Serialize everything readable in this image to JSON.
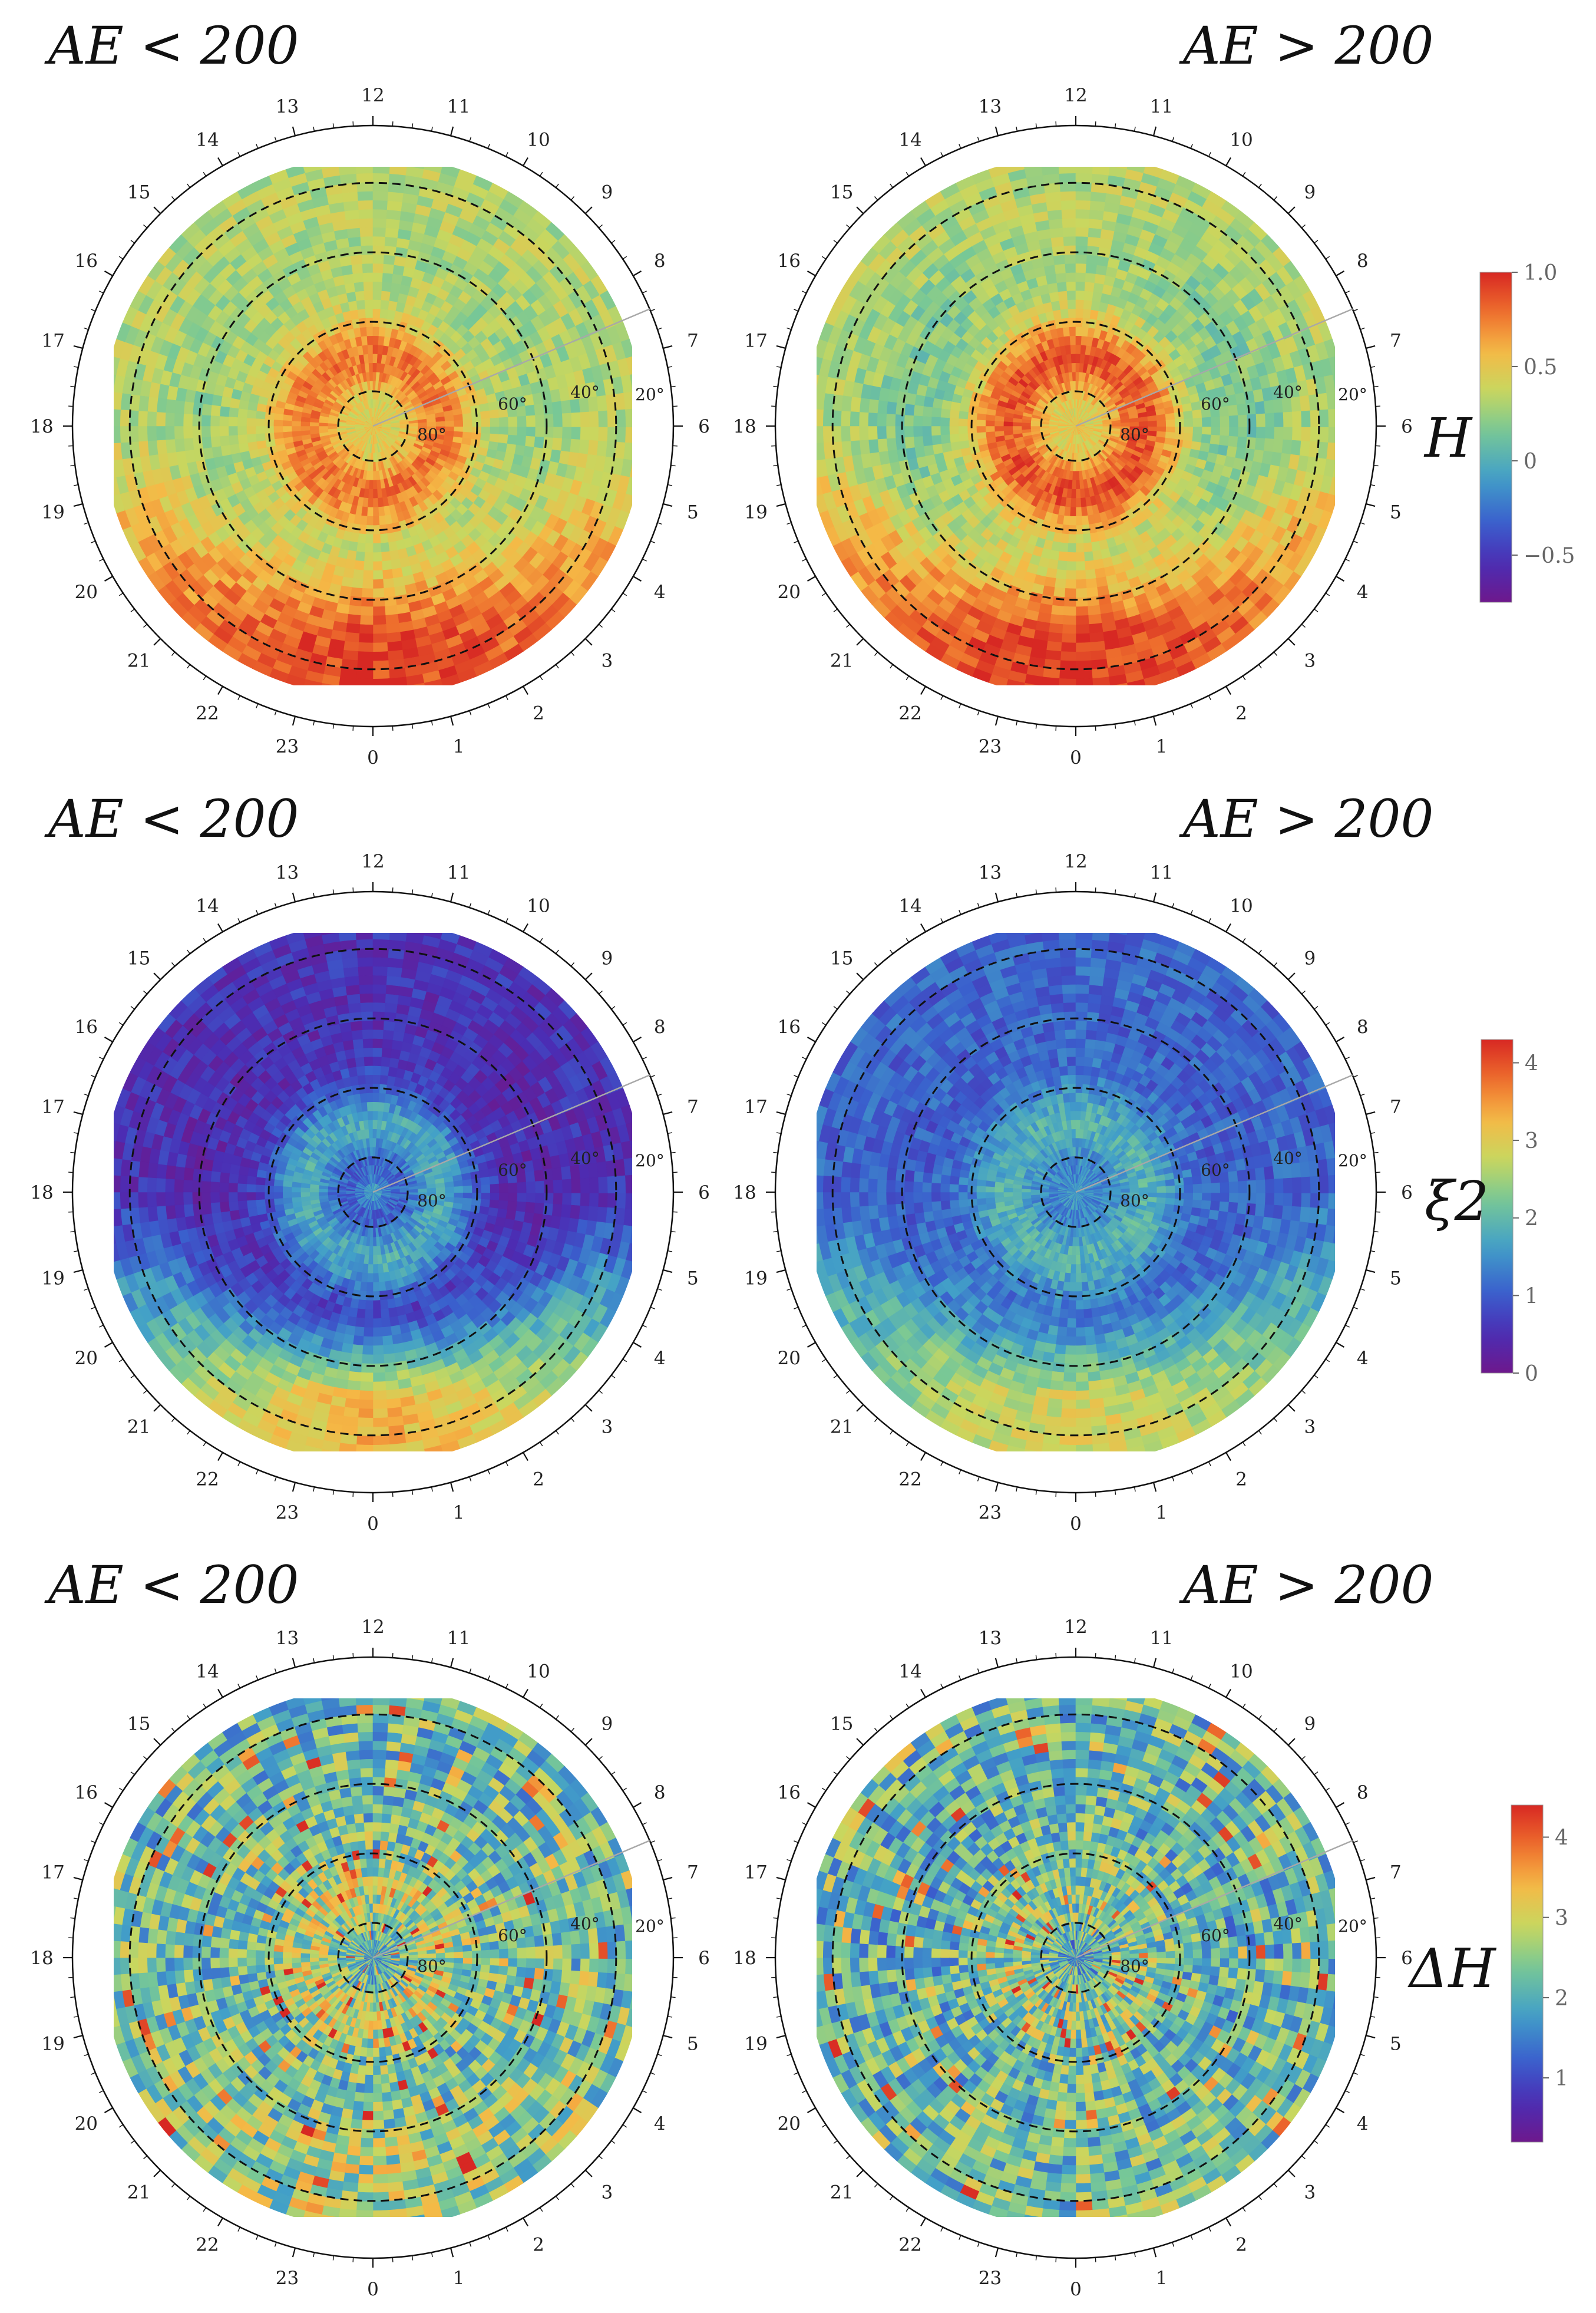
{
  "figure": {
    "panel_titles": {
      "left": "AE < 200",
      "right": "AE > 200"
    },
    "hour_labels": [
      "12",
      "11",
      "10",
      "9",
      "8",
      "7",
      "6",
      "5",
      "4",
      "3",
      "2",
      "1",
      "0",
      "23",
      "22",
      "21",
      "20",
      "19",
      "18",
      "17",
      "16",
      "15",
      "14",
      "13"
    ],
    "lat_labels": [
      "20°",
      "40°",
      "60°",
      "80°"
    ]
  },
  "chart_data": [
    {
      "type": "heatmap",
      "projection": "polar",
      "row": 1,
      "quantity": "H",
      "title_left": "AE < 200",
      "title_right": "AE > 200",
      "colorbar": {
        "min": -0.75,
        "max": 1.0,
        "ticks": [
          "1.0",
          "0.5",
          "0",
          "−0.5"
        ],
        "tick_values": [
          1.0,
          0.5,
          0.0,
          -0.5
        ]
      },
      "panels": [
        {
          "condition": "AE < 200",
          "mean_pole": 0.5,
          "ring_60_80": 0.78,
          "dawn_dusk_40": 0.25,
          "night_20": 0.95
        },
        {
          "condition": "AE > 200",
          "mean_pole": 0.5,
          "ring_60_80": 0.88,
          "dawn_dusk_40": 0.12,
          "night_20": 0.98
        }
      ]
    },
    {
      "type": "heatmap",
      "projection": "polar",
      "row": 2,
      "quantity": "ξ2",
      "title_left": "AE < 200",
      "title_right": "AE > 200",
      "colorbar": {
        "min": 0.0,
        "max": 4.3,
        "ticks": [
          "4",
          "3",
          "2",
          "1",
          "0"
        ],
        "tick_values": [
          4,
          3,
          2,
          1,
          0
        ]
      },
      "panels": [
        {
          "condition": "AE < 200",
          "mean_pole": 1.6,
          "ring_60_80": 1.8,
          "dawn_dusk_40": 0.4,
          "night_20": 3.4
        },
        {
          "condition": "AE > 200",
          "mean_pole": 1.6,
          "ring_60_80": 1.9,
          "dawn_dusk_40": 1.0,
          "night_20": 3.0
        }
      ]
    },
    {
      "type": "heatmap",
      "projection": "polar",
      "row": 3,
      "quantity": "ΔH",
      "title_left": "AE < 200",
      "title_right": "AE > 200",
      "colorbar": {
        "min": 0.2,
        "max": 4.4,
        "ticks": [
          "4",
          "3",
          "2",
          "1"
        ],
        "tick_values": [
          4,
          3,
          2,
          1
        ]
      },
      "panels": [
        {
          "condition": "AE < 200",
          "mean_pole": 1.8,
          "ring_60_80": 2.8,
          "dawn_dusk_40": 2.3,
          "night_20": 2.7
        },
        {
          "condition": "AE > 200",
          "mean_pole": 1.7,
          "ring_60_80": 2.5,
          "dawn_dusk_40": 2.0,
          "night_20": 2.3
        }
      ]
    }
  ]
}
